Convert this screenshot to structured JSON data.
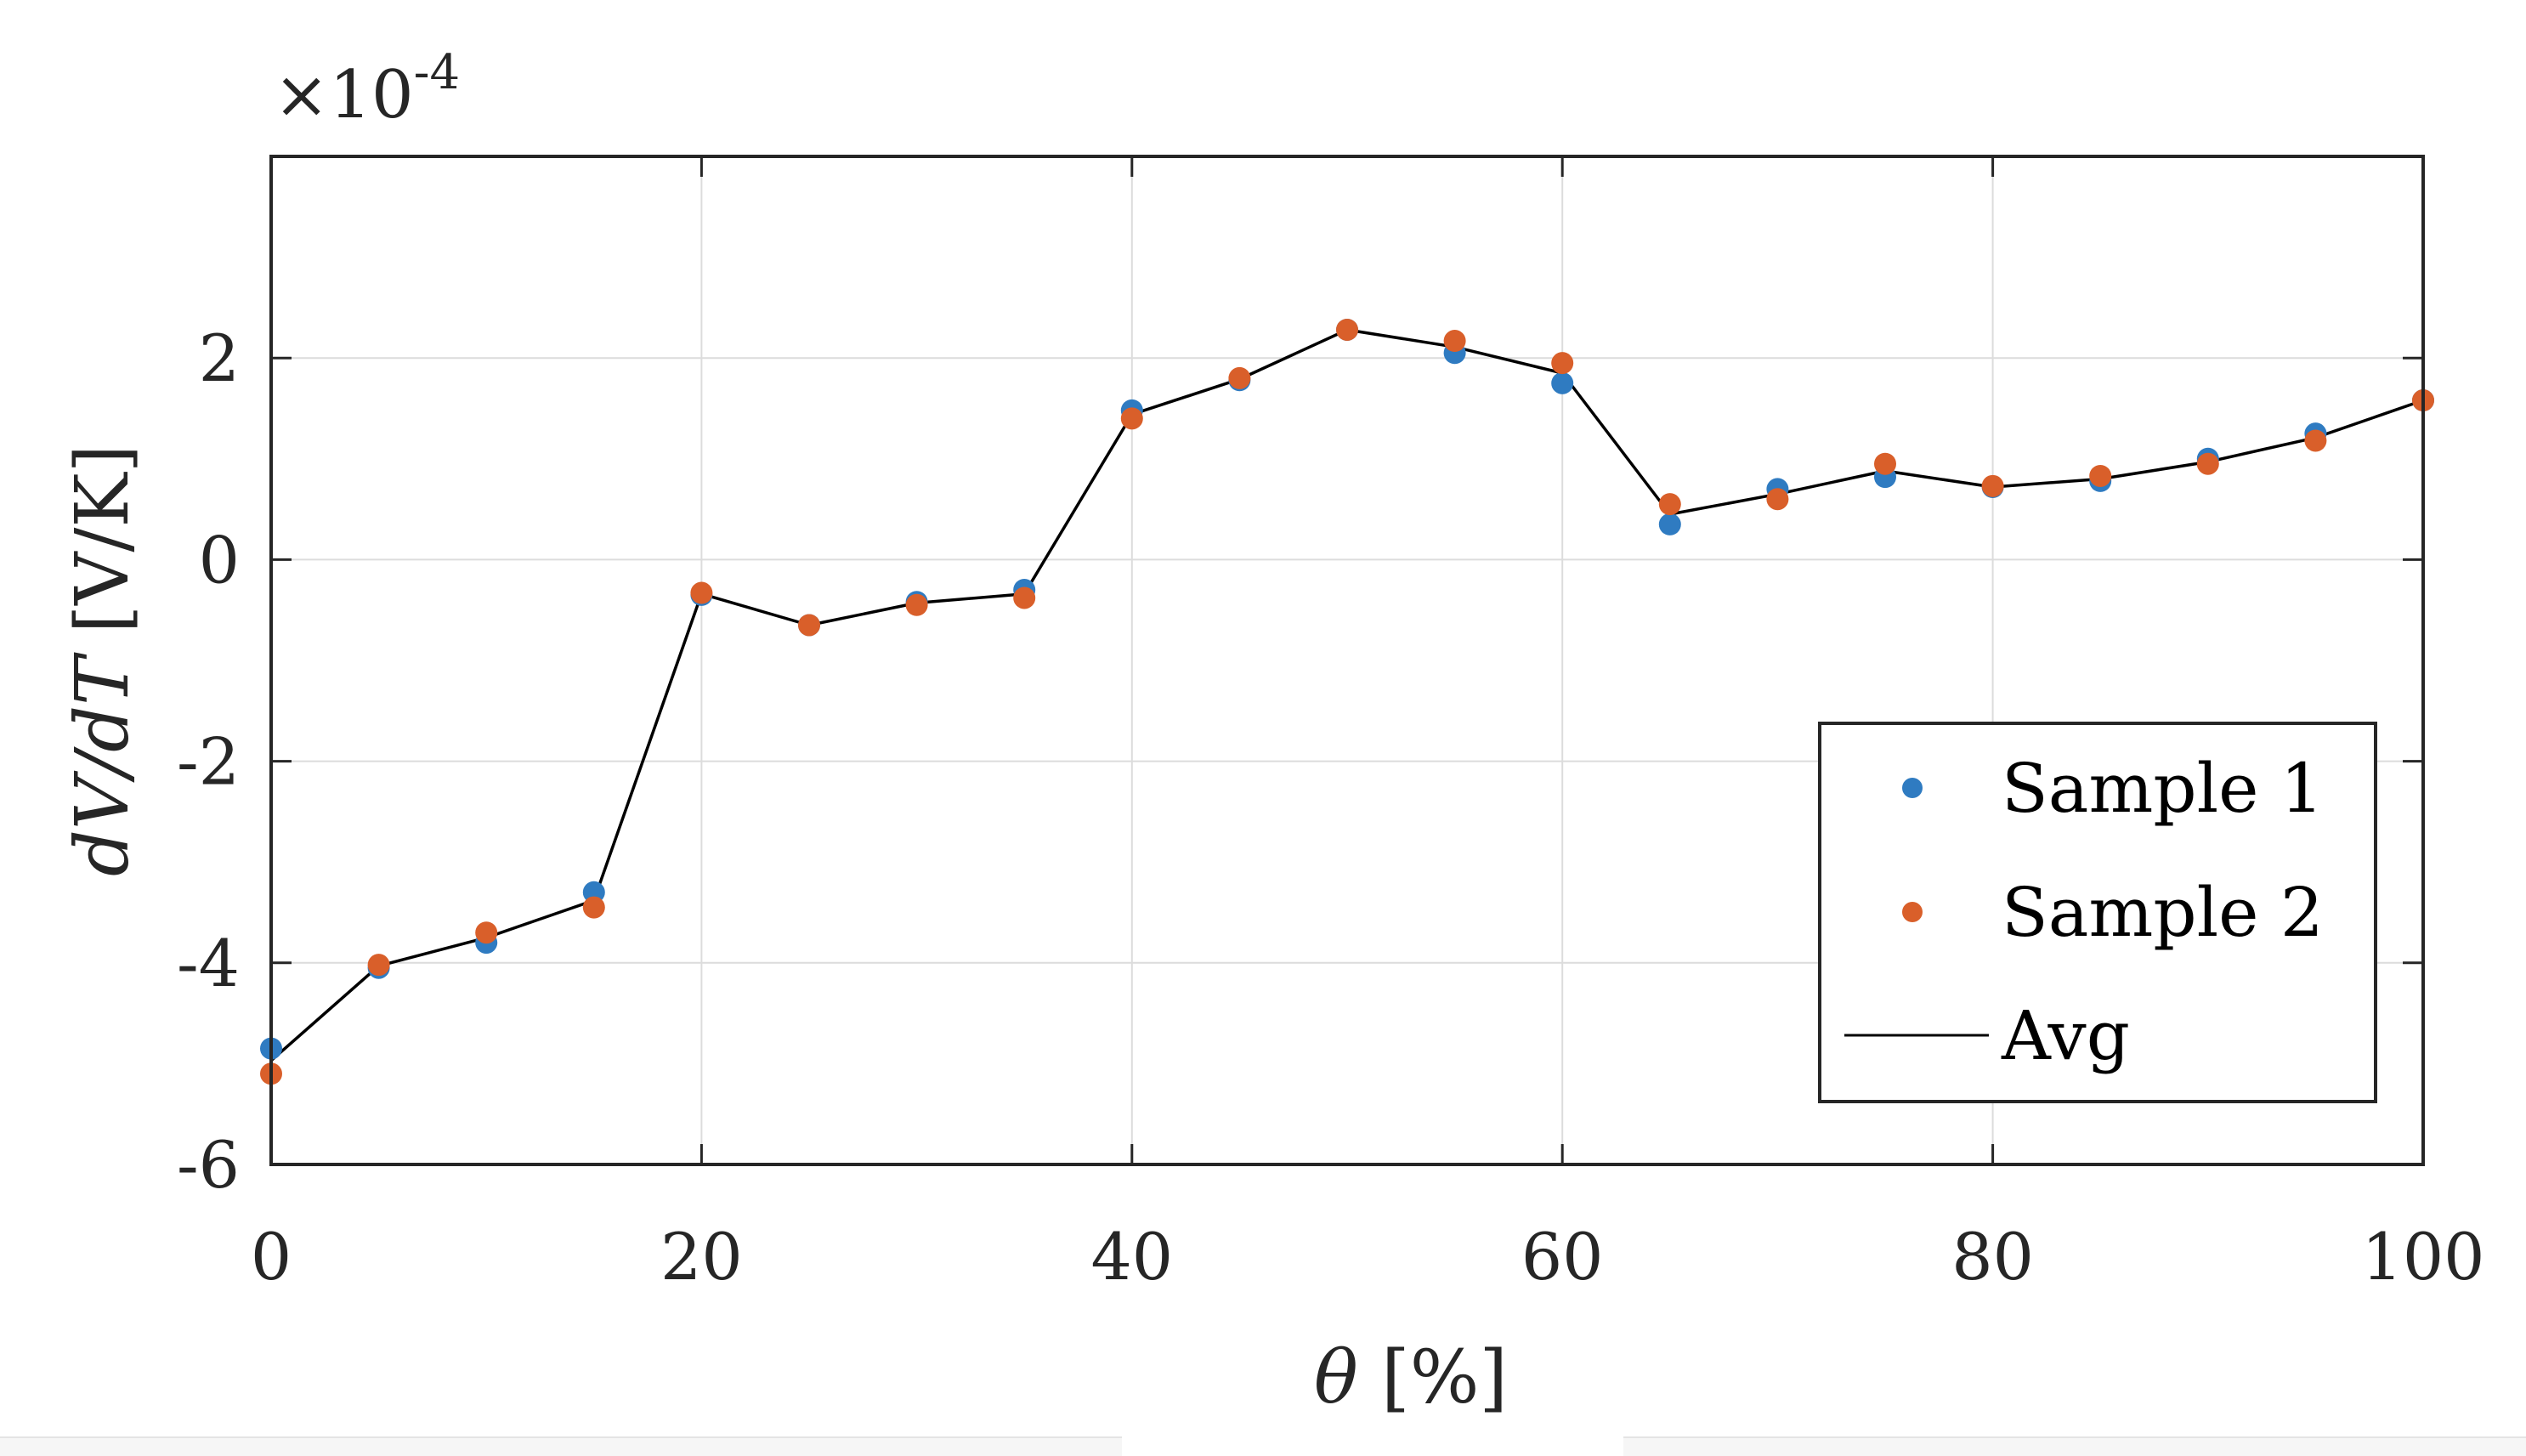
{
  "chart_data": {
    "type": "scatter",
    "x_label": {
      "symbol": "θ",
      "unit": "[%]"
    },
    "y_label": {
      "symbol": "dV/dT",
      "unit": "[V/K]"
    },
    "y_multiplier": {
      "base": "×10",
      "exponent": "-4"
    },
    "xlim": [
      0,
      100
    ],
    "ylim": [
      -6,
      4
    ],
    "x_ticks": [
      0,
      20,
      40,
      60,
      80,
      100
    ],
    "x_tick_labels": [
      "0",
      "20",
      "40",
      "60",
      "80",
      "100"
    ],
    "y_ticks": [
      -6,
      -4,
      -2,
      0,
      2
    ],
    "y_tick_labels": [
      "-6",
      "-4",
      "-2",
      "0",
      "2"
    ],
    "grid": true,
    "legend_position": "bottom-right",
    "x": [
      0,
      5,
      10,
      15,
      20,
      25,
      30,
      35,
      40,
      45,
      50,
      55,
      60,
      65,
      70,
      75,
      80,
      85,
      90,
      95,
      100
    ],
    "series": [
      {
        "name": "Sample 1",
        "kind": "points",
        "color": "#2f7bc1",
        "values": [
          -4.85,
          -4.05,
          -3.8,
          -3.3,
          -0.35,
          -0.65,
          -0.42,
          -0.3,
          1.48,
          1.78,
          2.28,
          2.05,
          1.75,
          0.35,
          0.7,
          0.82,
          0.72,
          0.78,
          1.0,
          1.25,
          1.58
        ]
      },
      {
        "name": "Sample 2",
        "kind": "points",
        "color": "#d95f2a",
        "values": [
          -5.1,
          -4.02,
          -3.7,
          -3.45,
          -0.33,
          -0.65,
          -0.45,
          -0.38,
          1.4,
          1.8,
          2.28,
          2.17,
          1.95,
          0.55,
          0.6,
          0.95,
          0.73,
          0.83,
          0.95,
          1.18,
          1.58
        ]
      },
      {
        "name": "Avg",
        "kind": "line",
        "color": "#000000",
        "values": [
          -4.97,
          -4.03,
          -3.75,
          -3.38,
          -0.34,
          -0.65,
          -0.43,
          -0.34,
          1.44,
          1.79,
          2.28,
          2.11,
          1.85,
          0.45,
          0.65,
          0.88,
          0.72,
          0.8,
          0.97,
          1.21,
          1.58
        ]
      }
    ]
  }
}
